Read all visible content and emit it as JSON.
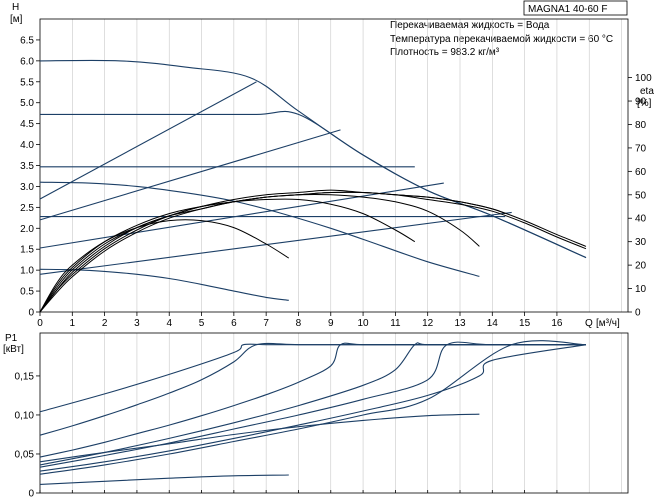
{
  "header": {
    "model": "MAGNA1 40-60 F",
    "info": [
      "Перекачиваемая жидкость = Вода",
      "Температура перекачиваемой жидкости = 60 °C",
      "Плотность = 983.2 кг/м³"
    ]
  },
  "chart_data": [
    {
      "type": "line",
      "title": "",
      "ylabel": "H",
      "ylabel_unit": "[м]",
      "y2label": "eta",
      "y2label_unit": "[%]",
      "xlabel": "Q",
      "xlabel_unit": "[м³/ч]",
      "xlim": [
        0,
        18.2
      ],
      "ylim": [
        0,
        7.0
      ],
      "y2lim": [
        0,
        125
      ],
      "x_ticks": [
        0,
        1,
        2,
        3,
        4,
        5,
        6,
        7,
        8,
        9,
        10,
        11,
        12,
        13,
        14,
        15,
        16
      ],
      "y_ticks": [
        "0",
        "0.5",
        "1.0",
        "1.5",
        "2.0",
        "2.5",
        "3.0",
        "3.5",
        "4.0",
        "4.5",
        "5.0",
        "5.5",
        "6.0",
        "6.5"
      ],
      "y2_ticks": [
        "0",
        "10",
        "20",
        "30",
        "40",
        "50",
        "60",
        "70",
        "80",
        "90",
        "100"
      ],
      "grid": "vertical",
      "head_curves": [
        {
          "x": [
            0,
            2.5,
            4.5,
            6.5,
            8,
            10,
            12,
            14,
            16.9
          ],
          "y": [
            6.0,
            6.0,
            5.85,
            5.6,
            4.8,
            3.75,
            2.9,
            2.3,
            1.3
          ]
        },
        {
          "x": [
            0,
            2,
            4,
            6.7,
            8,
            10,
            12,
            14,
            16.9
          ],
          "y": [
            4.72,
            4.72,
            4.72,
            4.72,
            4.72,
            3.75,
            2.9,
            2.3,
            1.3
          ]
        },
        {
          "x": [
            0,
            2,
            4,
            6,
            8,
            10,
            11.6
          ],
          "y": [
            3.47,
            3.47,
            3.47,
            3.47,
            3.47,
            3.47,
            3.47
          ]
        },
        {
          "x": [
            0,
            2,
            4,
            6,
            8,
            10,
            12,
            14.4
          ],
          "y": [
            2.28,
            2.28,
            2.28,
            2.28,
            2.28,
            2.28,
            2.28,
            2.28
          ]
        },
        {
          "x": [
            0,
            1.5,
            3,
            4.5,
            6,
            7.5,
            9,
            10.5,
            12,
            13.6
          ],
          "y": [
            3.1,
            3.08,
            3.0,
            2.85,
            2.65,
            2.35,
            2.0,
            1.6,
            1.2,
            0.85
          ]
        },
        {
          "x": [
            0,
            1,
            2,
            3,
            4,
            5,
            6,
            7,
            7.7
          ],
          "y": [
            1.02,
            1.01,
            0.97,
            0.9,
            0.8,
            0.66,
            0.5,
            0.35,
            0.28
          ]
        },
        {
          "x": [
            0,
            6.7
          ],
          "y": [
            2.7,
            5.5
          ]
        },
        {
          "x": [
            0,
            9.3
          ],
          "y": [
            2.2,
            4.35
          ]
        },
        {
          "x": [
            0,
            12.5
          ],
          "y": [
            1.53,
            3.08
          ]
        },
        {
          "x": [
            0,
            14.6
          ],
          "y": [
            0.9,
            2.38
          ]
        }
      ],
      "efficiency_curves": [
        {
          "x": [
            0,
            0.5,
            1,
            2,
            3,
            4,
            5,
            6,
            7,
            7.7
          ],
          "y": [
            0,
            12,
            20,
            30,
            36,
            39,
            39,
            36,
            29,
            23
          ]
        },
        {
          "x": [
            0,
            0.5,
            1,
            2,
            3,
            4,
            5,
            6,
            7,
            8,
            9,
            10,
            11,
            11.6
          ],
          "y": [
            0,
            11,
            19,
            30,
            37,
            42,
            45,
            47,
            48,
            48,
            46,
            42,
            35,
            30
          ]
        },
        {
          "x": [
            0,
            0.5,
            1,
            2,
            3,
            4,
            5,
            6,
            7,
            8,
            9,
            10,
            11,
            12,
            13,
            13.6
          ],
          "y": [
            0,
            10,
            18,
            29,
            36,
            41,
            44,
            47,
            49,
            50,
            50,
            49,
            47,
            43,
            35,
            28
          ]
        },
        {
          "x": [
            0,
            0.5,
            1,
            2,
            3,
            4,
            5,
            6,
            7,
            8,
            9,
            10,
            11,
            12,
            13,
            14,
            14.4
          ],
          "y": [
            0,
            9,
            17,
            28,
            36,
            41,
            45,
            47,
            49,
            50,
            51,
            51,
            50,
            49,
            47,
            44,
            42
          ]
        },
        {
          "x": [
            0,
            0.5,
            1,
            2,
            3,
            4,
            5,
            6,
            7,
            8,
            9,
            10,
            11,
            12,
            13,
            14,
            15,
            16,
            16.9
          ],
          "y": [
            0,
            9,
            16,
            27,
            35,
            41,
            45,
            48,
            50,
            51,
            52,
            51,
            50,
            48,
            46,
            43,
            38,
            32,
            27
          ]
        },
        {
          "x": [
            0,
            0.5,
            1,
            2,
            3,
            4,
            5,
            6,
            7,
            8,
            9,
            10,
            11,
            12,
            13,
            14,
            15,
            16,
            16.9
          ],
          "y": [
            0,
            8,
            15,
            26,
            34,
            40,
            44,
            47,
            49,
            50,
            51,
            51,
            50,
            49,
            47,
            44,
            39,
            33,
            28
          ]
        }
      ]
    },
    {
      "type": "line",
      "title": "",
      "ylabel": "P1",
      "ylabel_unit": "[кВт]",
      "xlim": [
        0,
        18.2
      ],
      "ylim": [
        0,
        0.205
      ],
      "y_ticks": [
        "0",
        "0,05",
        "0,10",
        "0,15"
      ],
      "grid": "vertical",
      "power_curves": [
        {
          "x": [
            0,
            2,
            4,
            6,
            6.3,
            7,
            8,
            10,
            12,
            14,
            16.9
          ],
          "y": [
            0.104,
            0.127,
            0.152,
            0.18,
            0.19,
            0.19,
            0.19,
            0.19,
            0.19,
            0.19,
            0.19
          ]
        },
        {
          "x": [
            0,
            1,
            2,
            3,
            4,
            5,
            6,
            6.7,
            8,
            10,
            12,
            14,
            16.9
          ],
          "y": [
            0.074,
            0.086,
            0.099,
            0.113,
            0.128,
            0.145,
            0.168,
            0.19,
            0.19,
            0.19,
            0.19,
            0.19,
            0.19
          ]
        },
        {
          "x": [
            0,
            1,
            2,
            3,
            4,
            5,
            6,
            7,
            8,
            9,
            9.3,
            10,
            12,
            14,
            16.9
          ],
          "y": [
            0.046,
            0.055,
            0.065,
            0.076,
            0.087,
            0.099,
            0.112,
            0.126,
            0.142,
            0.163,
            0.19,
            0.19,
            0.19,
            0.19,
            0.19
          ]
        },
        {
          "x": [
            0,
            2,
            4,
            6,
            8,
            10,
            11,
            11.6,
            12,
            14,
            16.9
          ],
          "y": [
            0.036,
            0.052,
            0.07,
            0.09,
            0.112,
            0.138,
            0.158,
            0.19,
            0.19,
            0.19,
            0.19
          ]
        },
        {
          "x": [
            0,
            2,
            4,
            6,
            8,
            10,
            12,
            12.6,
            14,
            16.9
          ],
          "y": [
            0.033,
            0.048,
            0.064,
            0.082,
            0.1,
            0.12,
            0.145,
            0.19,
            0.19,
            0.19
          ]
        },
        {
          "x": [
            0,
            2,
            4,
            6,
            8,
            10,
            12,
            13.6,
            14,
            16.9
          ],
          "y": [
            0.028,
            0.04,
            0.054,
            0.07,
            0.087,
            0.105,
            0.125,
            0.15,
            0.17,
            0.19
          ]
        },
        {
          "x": [
            0,
            2,
            4,
            6,
            8,
            10,
            12,
            14.6,
            16.9
          ],
          "y": [
            0.024,
            0.036,
            0.05,
            0.066,
            0.082,
            0.1,
            0.12,
            0.19,
            0.19
          ]
        },
        {
          "x": [
            0,
            2,
            4,
            6,
            8,
            10,
            12,
            13.6
          ],
          "y": [
            0.04,
            0.052,
            0.063,
            0.075,
            0.085,
            0.093,
            0.099,
            0.101
          ]
        },
        {
          "x": [
            0,
            2,
            4,
            6,
            7.7
          ],
          "y": [
            0.011,
            0.015,
            0.019,
            0.022,
            0.023
          ]
        }
      ]
    }
  ]
}
